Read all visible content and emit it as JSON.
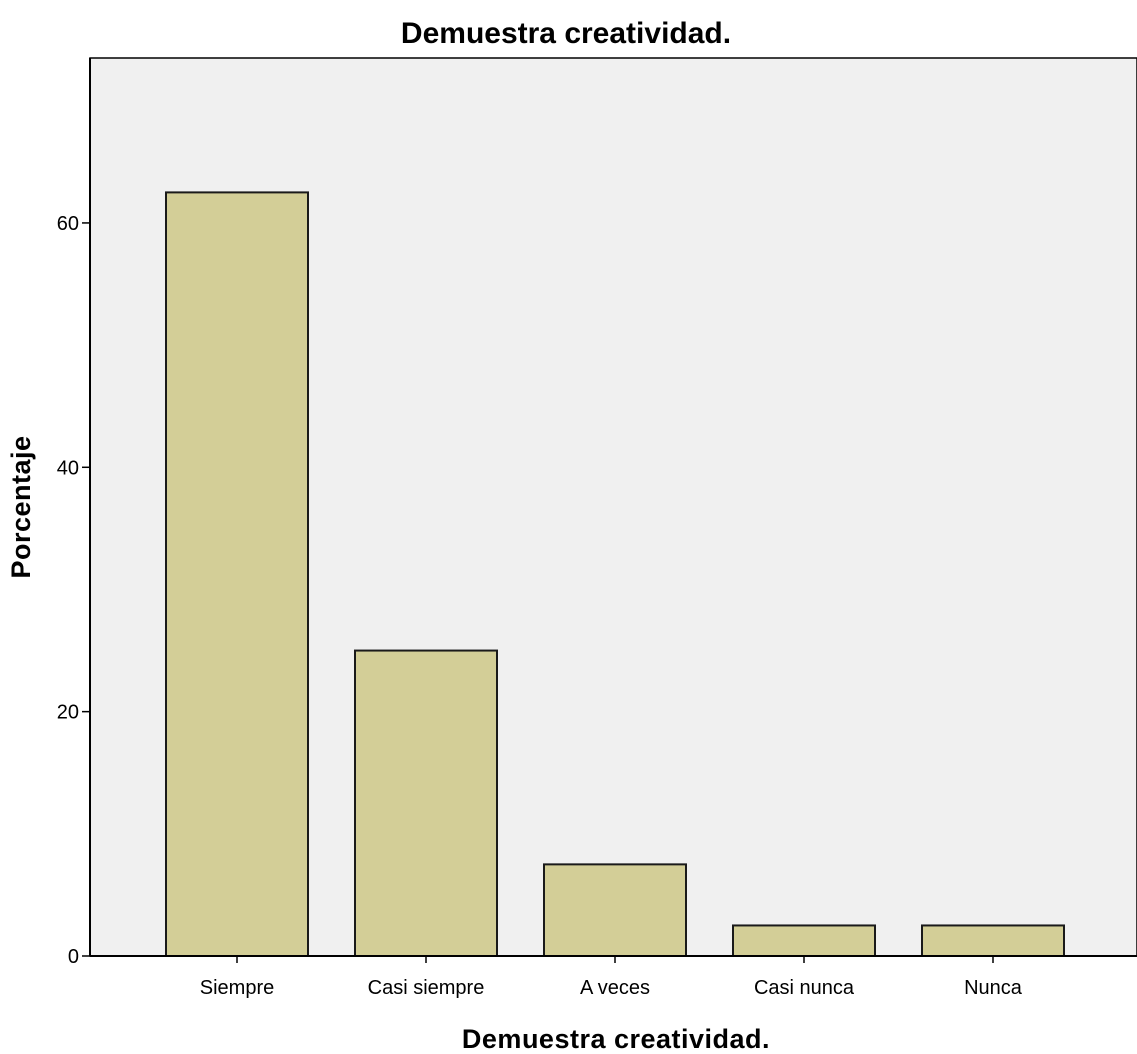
{
  "chart_data": {
    "type": "bar",
    "title": "Demuestra creatividad.",
    "xlabel": "Demuestra creatividad.",
    "ylabel": "Porcentaje",
    "categories": [
      "Siempre",
      "Casi siempre",
      "A veces",
      "Casi nunca",
      "Nunca"
    ],
    "values": [
      62.5,
      25.0,
      7.5,
      2.5,
      2.5
    ],
    "ylim": [
      0,
      73.5
    ],
    "yticks": [
      "0",
      "20",
      "40",
      "60"
    ],
    "grid": false,
    "legend": "none",
    "colors": {
      "bar_fill": "#d3ce97",
      "bar_stroke": "#1a1a1a",
      "plot_background": "#f0f0f0",
      "axis": "#000000"
    }
  }
}
